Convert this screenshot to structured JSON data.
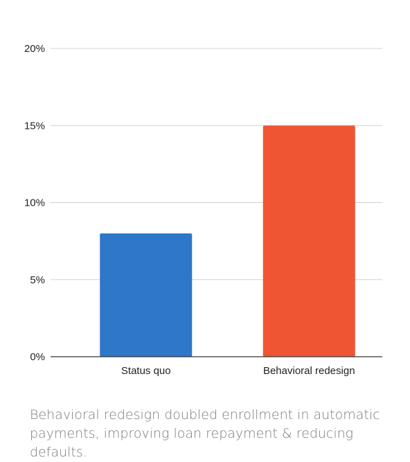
{
  "chart_data": {
    "type": "bar",
    "categories": [
      "Status quo",
      "Behavioral redesign"
    ],
    "values": [
      8,
      15
    ],
    "colors": [
      "#2e77c9",
      "#ef5533"
    ],
    "ylim": [
      0,
      20
    ],
    "yticks": [
      0,
      5,
      10,
      15,
      20
    ],
    "ytick_labels": [
      "0%",
      "5%",
      "10%",
      "15%",
      "20%"
    ],
    "title": "",
    "xlabel": "",
    "ylabel": "",
    "grid": true,
    "legend": "none"
  },
  "caption": "Behavioral redesign doubled enrollment in automatic payments, improving loan repayment & reducing defaults."
}
